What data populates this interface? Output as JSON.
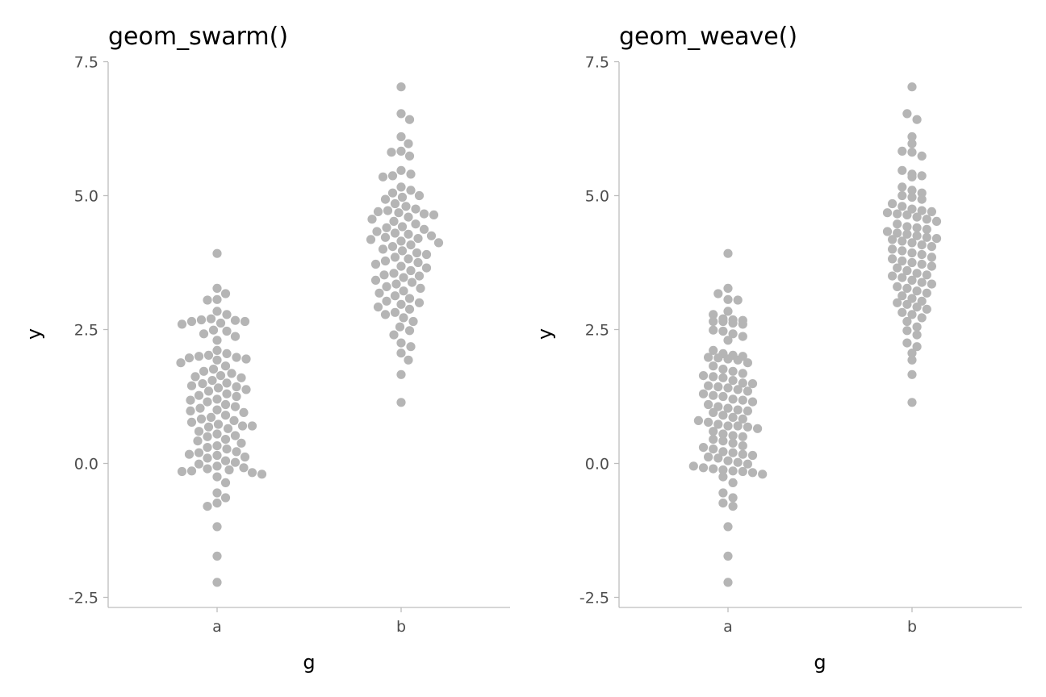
{
  "chart_data": [
    {
      "type": "scatter",
      "title": "geom_swarm()",
      "xlabel": "g",
      "ylabel": "y",
      "categories": [
        "a",
        "b"
      ],
      "yticks": [
        "-2.5",
        "0.0",
        "2.5",
        "5.0",
        "7.5"
      ],
      "ylim": [
        -2.7,
        7.5
      ],
      "point_color": "#b5b5b5",
      "layout": "swarm",
      "series": [
        {
          "values": [
            3.92,
            3.27,
            3.17,
            3.06,
            3.05,
            2.84,
            2.78,
            2.7,
            2.68,
            2.67,
            2.65,
            2.65,
            2.62,
            2.6,
            2.49,
            2.47,
            2.42,
            2.37,
            2.3,
            2.11,
            2.05,
            2.02,
            2.0,
            1.98,
            1.97,
            1.95,
            1.93,
            1.88,
            1.82,
            1.76,
            1.72,
            1.68,
            1.64,
            1.62,
            1.6,
            1.55,
            1.5,
            1.49,
            1.45,
            1.43,
            1.41,
            1.38,
            1.35,
            1.3,
            1.27,
            1.25,
            1.2,
            1.18,
            1.15,
            1.1,
            1.06,
            1.03,
            1.0,
            0.98,
            0.95,
            0.9,
            0.86,
            0.83,
            0.8,
            0.77,
            0.73,
            0.7,
            0.7,
            0.68,
            0.65,
            0.6,
            0.55,
            0.52,
            0.5,
            0.45,
            0.42,
            0.38,
            0.33,
            0.3,
            0.27,
            0.22,
            0.2,
            0.17,
            0.15,
            0.12,
            0.1,
            0.05,
            0.02,
            -0.01,
            -0.05,
            -0.08,
            -0.1,
            -0.12,
            -0.14,
            -0.15,
            -0.17,
            -0.2,
            -0.25,
            -0.36,
            -0.55,
            -0.64,
            -0.74,
            -0.8,
            -1.18,
            -1.73,
            -2.22
          ]
        },
        {
          "values": [
            7.03,
            6.53,
            6.42,
            6.1,
            5.97,
            5.83,
            5.81,
            5.74,
            5.47,
            5.4,
            5.37,
            5.35,
            5.16,
            5.1,
            5.05,
            5.0,
            4.97,
            4.93,
            4.85,
            4.8,
            4.75,
            4.72,
            4.7,
            4.68,
            4.66,
            4.64,
            4.6,
            4.56,
            4.52,
            4.47,
            4.42,
            4.4,
            4.37,
            4.33,
            4.3,
            4.28,
            4.25,
            4.22,
            4.2,
            4.18,
            4.15,
            4.12,
            4.08,
            4.05,
            4.0,
            3.97,
            3.93,
            3.9,
            3.85,
            3.82,
            3.78,
            3.75,
            3.72,
            3.68,
            3.65,
            3.6,
            3.55,
            3.52,
            3.5,
            3.47,
            3.42,
            3.38,
            3.35,
            3.3,
            3.27,
            3.22,
            3.18,
            3.13,
            3.08,
            3.03,
            3.0,
            2.97,
            2.92,
            2.88,
            2.82,
            2.78,
            2.72,
            2.65,
            2.55,
            2.48,
            2.4,
            2.25,
            2.18,
            2.06,
            1.93,
            1.66,
            1.14
          ]
        }
      ]
    },
    {
      "type": "scatter",
      "title": "geom_weave()",
      "xlabel": "g",
      "ylabel": "y",
      "categories": [
        "a",
        "b"
      ],
      "yticks": [
        "-2.5",
        "0.0",
        "2.5",
        "5.0",
        "7.5"
      ],
      "ylim": [
        -2.7,
        7.5
      ],
      "point_color": "#b5b5b5",
      "layout": "weave",
      "series": [
        {
          "values": [
            3.92,
            3.27,
            3.17,
            3.06,
            3.05,
            2.84,
            2.78,
            2.7,
            2.68,
            2.67,
            2.65,
            2.65,
            2.62,
            2.6,
            2.49,
            2.47,
            2.42,
            2.37,
            2.3,
            2.11,
            2.05,
            2.02,
            2.0,
            1.98,
            1.97,
            1.95,
            1.93,
            1.88,
            1.82,
            1.76,
            1.72,
            1.68,
            1.64,
            1.62,
            1.6,
            1.55,
            1.5,
            1.49,
            1.45,
            1.43,
            1.41,
            1.38,
            1.35,
            1.3,
            1.27,
            1.25,
            1.2,
            1.18,
            1.15,
            1.1,
            1.06,
            1.03,
            1.0,
            0.98,
            0.95,
            0.9,
            0.86,
            0.83,
            0.8,
            0.77,
            0.73,
            0.7,
            0.7,
            0.68,
            0.65,
            0.6,
            0.55,
            0.52,
            0.5,
            0.45,
            0.42,
            0.38,
            0.33,
            0.3,
            0.27,
            0.22,
            0.2,
            0.17,
            0.15,
            0.12,
            0.1,
            0.05,
            0.02,
            -0.01,
            -0.05,
            -0.08,
            -0.1,
            -0.12,
            -0.14,
            -0.15,
            -0.17,
            -0.2,
            -0.25,
            -0.36,
            -0.55,
            -0.64,
            -0.74,
            -0.8,
            -1.18,
            -1.73,
            -2.22
          ]
        },
        {
          "values": [
            7.03,
            6.53,
            6.42,
            6.1,
            5.97,
            5.83,
            5.81,
            5.74,
            5.47,
            5.4,
            5.37,
            5.35,
            5.16,
            5.1,
            5.05,
            5.0,
            4.97,
            4.93,
            4.85,
            4.8,
            4.75,
            4.72,
            4.7,
            4.68,
            4.66,
            4.64,
            4.6,
            4.56,
            4.52,
            4.47,
            4.42,
            4.4,
            4.37,
            4.33,
            4.3,
            4.28,
            4.25,
            4.22,
            4.2,
            4.18,
            4.15,
            4.12,
            4.08,
            4.05,
            4.0,
            3.97,
            3.93,
            3.9,
            3.85,
            3.82,
            3.78,
            3.75,
            3.72,
            3.68,
            3.65,
            3.6,
            3.55,
            3.52,
            3.5,
            3.47,
            3.42,
            3.38,
            3.35,
            3.3,
            3.27,
            3.22,
            3.18,
            3.13,
            3.08,
            3.03,
            3.0,
            2.97,
            2.92,
            2.88,
            2.82,
            2.78,
            2.72,
            2.65,
            2.55,
            2.48,
            2.4,
            2.25,
            2.18,
            2.06,
            1.93,
            1.66,
            1.14
          ]
        }
      ]
    }
  ]
}
